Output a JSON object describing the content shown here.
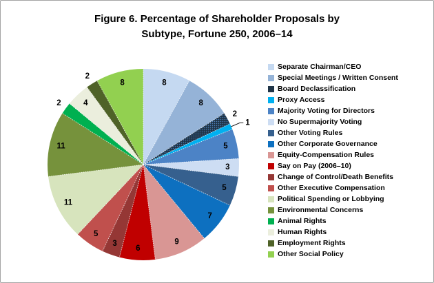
{
  "figure": {
    "background": "#ffffff",
    "border_color": "#a3a3a3"
  },
  "title": {
    "line1": "Figure 6. Percentage of Shareholder Proposals by",
    "line2": "Subtype, Fortune 250, 2006–14"
  },
  "chart_data": {
    "type": "pie",
    "title": "Figure 6. Percentage of Shareholder Proposals by Subtype, Fortune 250, 2006–14",
    "unit": "percent",
    "start_angle_deg": 0,
    "direction": "clockwise",
    "legend_position": "right",
    "data_label_style": "value only, bold black; slices of 2% or less labeled outside; 1% slice labeled with leader line",
    "categories": [
      "Separate Chairman/CEO",
      "Special Meetings / Written Consent",
      "Board Declassification",
      "Proxy Access",
      "Majority Voting for Directors",
      "No Supermajority Voting",
      "Other Voting Rules",
      "Other Corporate Governance",
      "Equity-Compensation Rules",
      "Say on Pay (2006–10)",
      "Change of Control/Death Benefits",
      "Other Executive Compensation",
      "Political Spending or Lobbying",
      "Environmental Concerns",
      "Animal Rights",
      "Human Rights",
      "Employment Rights",
      "Other Social Policy"
    ],
    "values": [
      8,
      8,
      2,
      1,
      5,
      3,
      5,
      7,
      9,
      6,
      3,
      5,
      11,
      11,
      2,
      4,
      2,
      8
    ],
    "colors": [
      "#c5d9f1",
      "#95b3d7",
      "#1f3447",
      "#00b0f0",
      "#4c83c6",
      "#cdddf3",
      "#36608e",
      "#0d70c0",
      "#d99694",
      "#c00000",
      "#953735",
      "#c0504d",
      "#d7e4bd",
      "#76923c",
      "#00b050",
      "#ebeedd",
      "#4f6228",
      "#92d050"
    ],
    "pattern_slice": {
      "category": "Board Declassification",
      "index": 2,
      "base_color": "#1f3447",
      "dot_color": "#4f81bd"
    },
    "divider_style": "thin white dotted radial borders between slices"
  }
}
